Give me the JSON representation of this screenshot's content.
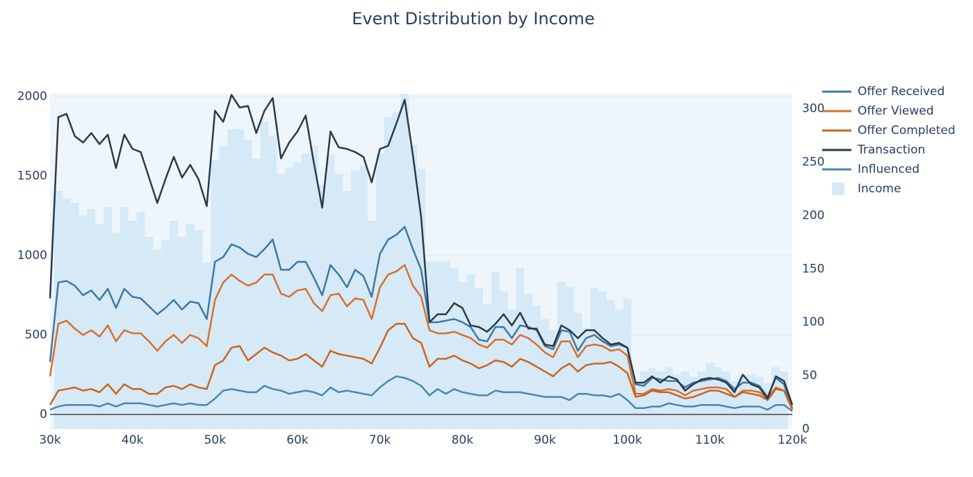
{
  "chart_data": {
    "type": "line",
    "title": "Event Distribution by Income",
    "x": [
      30000,
      31000,
      32000,
      33000,
      34000,
      35000,
      36000,
      37000,
      38000,
      39000,
      40000,
      41000,
      42000,
      43000,
      44000,
      45000,
      46000,
      47000,
      48000,
      49000,
      50000,
      51000,
      52000,
      53000,
      54000,
      55000,
      56000,
      57000,
      58000,
      59000,
      60000,
      61000,
      62000,
      63000,
      64000,
      65000,
      66000,
      67000,
      68000,
      69000,
      70000,
      71000,
      72000,
      73000,
      74000,
      75000,
      76000,
      77000,
      78000,
      79000,
      80000,
      81000,
      82000,
      83000,
      84000,
      85000,
      86000,
      87000,
      88000,
      89000,
      90000,
      91000,
      92000,
      93000,
      94000,
      95000,
      96000,
      97000,
      98000,
      99000,
      100000,
      101000,
      102000,
      103000,
      104000,
      105000,
      106000,
      107000,
      108000,
      109000,
      110000,
      111000,
      112000,
      113000,
      114000,
      115000,
      116000,
      117000,
      118000,
      119000,
      120000
    ],
    "series": [
      {
        "name": "Offer Received",
        "color": "#3f77a3",
        "values": [
          330,
          830,
          840,
          810,
          750,
          780,
          720,
          790,
          670,
          790,
          740,
          730,
          680,
          630,
          670,
          720,
          660,
          710,
          700,
          600,
          960,
          990,
          1070,
          1050,
          1010,
          990,
          1040,
          1100,
          910,
          910,
          960,
          960,
          860,
          750,
          940,
          880,
          800,
          910,
          870,
          740,
          1010,
          1100,
          1130,
          1180,
          1040,
          910,
          580,
          580,
          590,
          600,
          580,
          550,
          470,
          460,
          550,
          550,
          480,
          560,
          550,
          530,
          430,
          410,
          530,
          520,
          400,
          480,
          500,
          460,
          430,
          440,
          420,
          190,
          180,
          230,
          220,
          210,
          210,
          170,
          200,
          210,
          220,
          230,
          210,
          160,
          200,
          200,
          180,
          110,
          230,
          190,
          40
        ]
      },
      {
        "name": "Offer Viewed",
        "color": "#d6702b",
        "values": [
          240,
          570,
          590,
          540,
          500,
          530,
          490,
          560,
          460,
          530,
          510,
          510,
          460,
          400,
          460,
          500,
          450,
          500,
          480,
          430,
          720,
          830,
          880,
          840,
          810,
          830,
          880,
          880,
          760,
          740,
          780,
          790,
          700,
          650,
          750,
          760,
          680,
          730,
          720,
          600,
          800,
          880,
          900,
          940,
          810,
          740,
          530,
          510,
          510,
          520,
          500,
          480,
          440,
          420,
          470,
          470,
          440,
          500,
          480,
          440,
          390,
          360,
          460,
          460,
          360,
          430,
          440,
          430,
          400,
          410,
          370,
          130,
          130,
          160,
          150,
          160,
          150,
          120,
          150,
          160,
          170,
          170,
          160,
          110,
          150,
          150,
          140,
          100,
          170,
          150,
          40
        ]
      },
      {
        "name": "Offer Completed",
        "color": "#c9651e",
        "values": [
          60,
          150,
          160,
          170,
          150,
          160,
          140,
          190,
          130,
          190,
          160,
          160,
          130,
          130,
          170,
          180,
          160,
          190,
          170,
          160,
          310,
          340,
          420,
          430,
          340,
          380,
          420,
          390,
          370,
          340,
          350,
          380,
          340,
          300,
          400,
          380,
          370,
          360,
          350,
          320,
          420,
          530,
          570,
          570,
          480,
          450,
          300,
          350,
          350,
          370,
          340,
          320,
          290,
          310,
          340,
          330,
          300,
          350,
          330,
          300,
          270,
          240,
          290,
          320,
          270,
          310,
          320,
          320,
          330,
          300,
          260,
          110,
          120,
          150,
          140,
          140,
          120,
          100,
          110,
          130,
          150,
          150,
          130,
          110,
          140,
          130,
          120,
          90,
          160,
          150,
          30
        ]
      },
      {
        "name": "Transaction",
        "color": "#2a3a48",
        "values": [
          730,
          1870,
          1890,
          1750,
          1710,
          1770,
          1700,
          1760,
          1550,
          1760,
          1670,
          1650,
          1490,
          1330,
          1480,
          1620,
          1490,
          1570,
          1480,
          1310,
          1910,
          1840,
          2010,
          1930,
          1940,
          1770,
          1910,
          1990,
          1610,
          1710,
          1780,
          1880,
          1580,
          1300,
          1780,
          1680,
          1670,
          1650,
          1620,
          1460,
          1670,
          1690,
          1830,
          1980,
          1630,
          1240,
          580,
          630,
          630,
          700,
          670,
          560,
          550,
          520,
          570,
          630,
          560,
          640,
          540,
          540,
          440,
          430,
          560,
          530,
          480,
          530,
          530,
          480,
          440,
          450,
          420,
          200,
          200,
          240,
          200,
          240,
          220,
          150,
          190,
          220,
          230,
          220,
          200,
          140,
          250,
          190,
          170,
          100,
          240,
          210,
          60
        ]
      },
      {
        "name": "Influenced",
        "color": "#4a86ae",
        "values": [
          30,
          50,
          60,
          60,
          60,
          60,
          50,
          70,
          50,
          70,
          70,
          70,
          60,
          50,
          60,
          70,
          60,
          70,
          60,
          60,
          100,
          150,
          160,
          150,
          140,
          140,
          180,
          160,
          150,
          130,
          140,
          150,
          140,
          120,
          170,
          140,
          150,
          140,
          130,
          120,
          170,
          210,
          240,
          230,
          210,
          180,
          120,
          160,
          130,
          160,
          140,
          130,
          120,
          120,
          150,
          140,
          140,
          140,
          130,
          120,
          110,
          110,
          110,
          90,
          130,
          130,
          120,
          120,
          110,
          130,
          90,
          40,
          40,
          50,
          50,
          70,
          60,
          50,
          50,
          60,
          60,
          60,
          50,
          40,
          50,
          50,
          50,
          30,
          60,
          60,
          20
        ]
      },
      {
        "name": "Income",
        "type": "bar",
        "axis": "y2",
        "color": "#d5e9f7",
        "x": [
          31000,
          32000,
          33000,
          34000,
          35000,
          36000,
          37000,
          38000,
          39000,
          40000,
          41000,
          42000,
          43000,
          44000,
          45000,
          46000,
          47000,
          48000,
          49000,
          50000,
          51000,
          52000,
          53000,
          54000,
          55000,
          56000,
          57000,
          58000,
          59000,
          60000,
          61000,
          62000,
          63000,
          64000,
          65000,
          66000,
          67000,
          68000,
          69000,
          70000,
          71000,
          72000,
          73000,
          74000,
          75000,
          76000,
          77000,
          78000,
          79000,
          80000,
          81000,
          82000,
          83000,
          84000,
          85000,
          86000,
          87000,
          88000,
          89000,
          90000,
          91000,
          92000,
          93000,
          94000,
          95000,
          96000,
          97000,
          98000,
          99000,
          100000,
          101000,
          102000,
          103000,
          104000,
          105000,
          106000,
          107000,
          108000,
          109000,
          110000,
          111000,
          112000,
          113000,
          114000,
          115000,
          116000,
          117000,
          118000,
          119000
        ],
        "values": [
          223,
          216,
          212,
          200,
          206,
          192,
          208,
          184,
          208,
          195,
          203,
          180,
          168,
          177,
          195,
          180,
          192,
          186,
          156,
          252,
          265,
          281,
          281,
          271,
          253,
          288,
          275,
          239,
          245,
          250,
          258,
          265,
          229,
          257,
          239,
          223,
          242,
          247,
          195,
          258,
          292,
          297,
          314,
          266,
          244,
          157,
          157,
          157,
          151,
          138,
          145,
          132,
          117,
          147,
          129,
          112,
          151,
          127,
          116,
          103,
          93,
          138,
          133,
          109,
          95,
          132,
          129,
          121,
          112,
          122,
          44,
          54,
          57,
          54,
          58,
          51,
          54,
          49,
          54,
          62,
          58,
          54,
          45,
          51,
          51,
          49,
          43,
          58,
          54
        ]
      }
    ],
    "xlim": [
      30000,
      120000
    ],
    "xticks": [
      {
        "value": 30000,
        "label": "30k"
      },
      {
        "value": 40000,
        "label": "40k"
      },
      {
        "value": 50000,
        "label": "50k"
      },
      {
        "value": 60000,
        "label": "60k"
      },
      {
        "value": 70000,
        "label": "70k"
      },
      {
        "value": 80000,
        "label": "80k"
      },
      {
        "value": 90000,
        "label": "90k"
      },
      {
        "value": 100000,
        "label": "100k"
      },
      {
        "value": 110000,
        "label": "110k"
      },
      {
        "value": 120000,
        "label": "120k"
      }
    ],
    "ylim": [
      -92,
      2017
    ],
    "yticks": [
      0,
      500,
      1000,
      1500,
      2000
    ],
    "y2lim": [
      0,
      314
    ],
    "y2ticks": [
      0,
      50,
      100,
      150,
      200,
      250,
      300
    ],
    "grid": true
  }
}
